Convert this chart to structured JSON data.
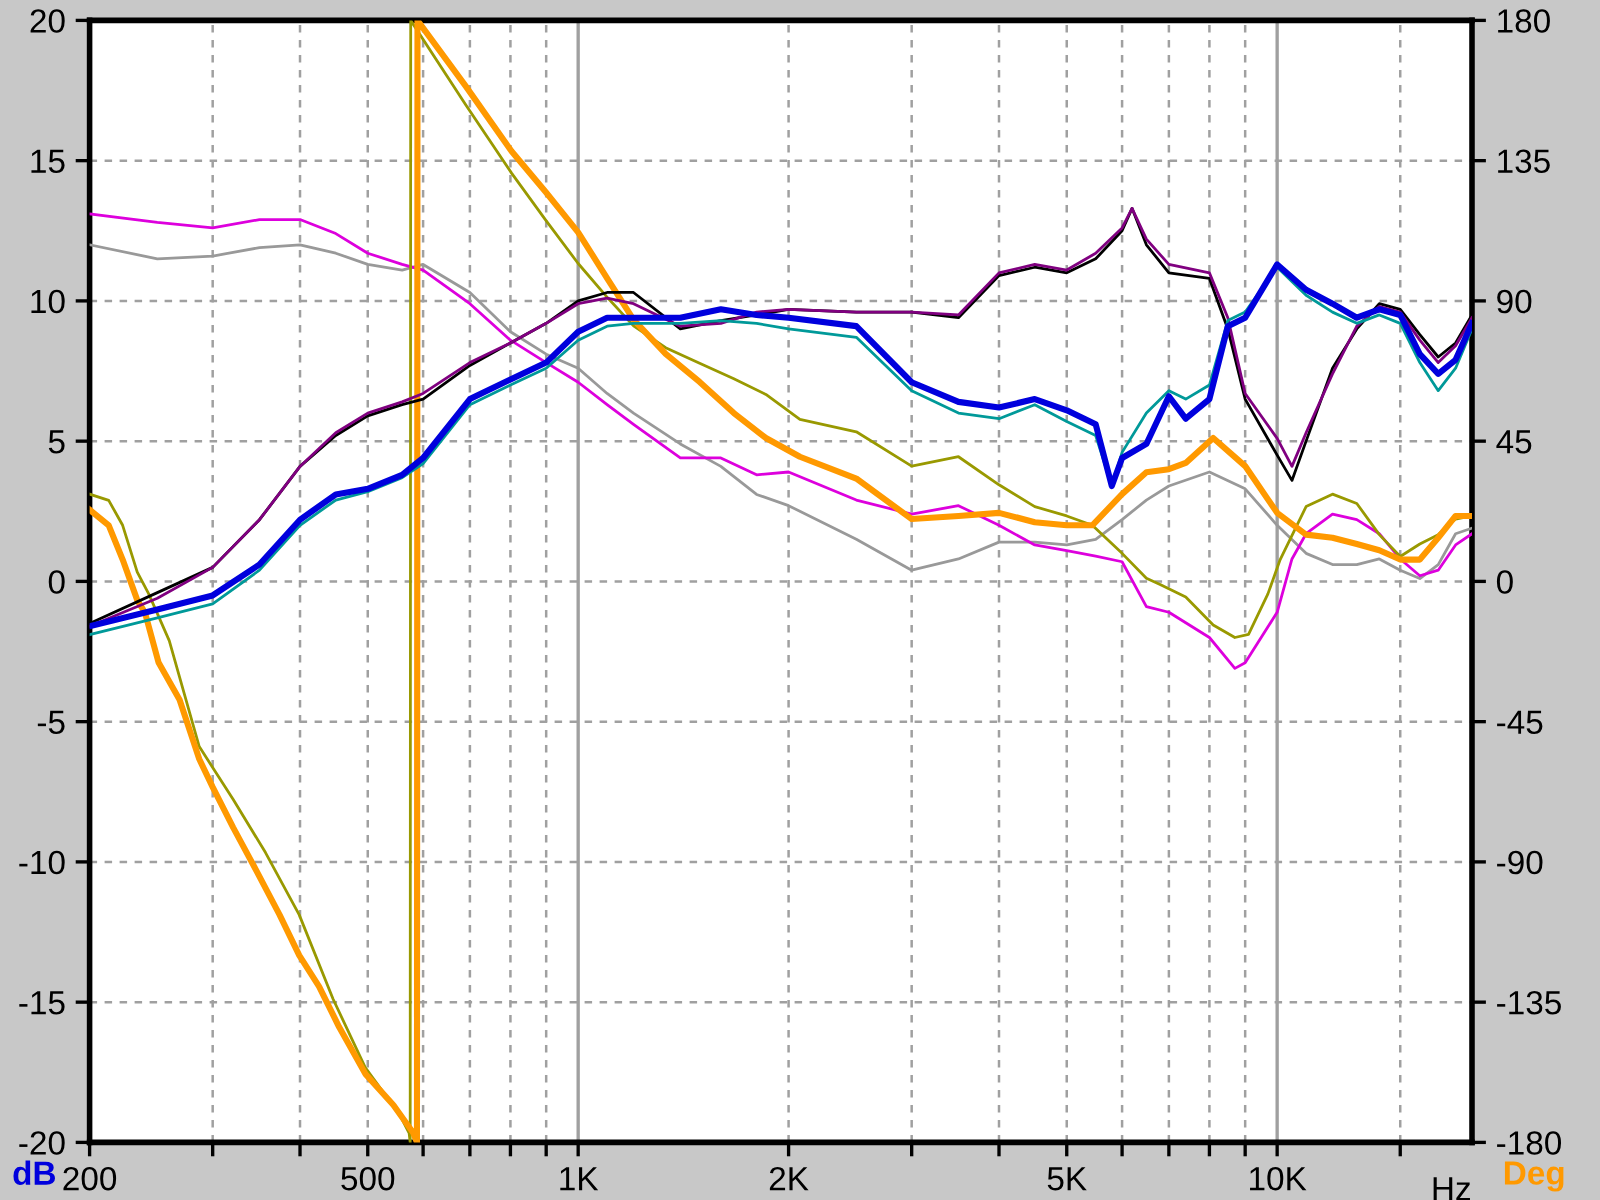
{
  "chart_data": {
    "type": "line",
    "xlabel": "Hz",
    "ylabel": "dB",
    "y2label": "Deg",
    "log": "x",
    "grid": true,
    "legend": false,
    "line_style": "solid",
    "marker": "none",
    "xlim": [
      200,
      19000
    ],
    "ylim": [
      -20,
      20
    ],
    "y2lim": [
      -180,
      180
    ],
    "xticks": [
      200,
      {
        "value": 300,
        "label": null
      },
      {
        "value": 400,
        "label": null
      },
      500,
      {
        "value": 600,
        "label": null
      },
      {
        "value": 700,
        "label": null
      },
      {
        "value": 800,
        "label": null
      },
      {
        "value": 900,
        "label": null
      },
      {
        "value": 1000,
        "label": "1K"
      },
      {
        "value": 2000,
        "label": "2K"
      },
      {
        "value": 3000,
        "label": null
      },
      {
        "value": 4000,
        "label": null
      },
      {
        "value": 5000,
        "label": "5K"
      },
      {
        "value": 6000,
        "label": null
      },
      {
        "value": 7000,
        "label": null
      },
      {
        "value": 8000,
        "label": null
      },
      {
        "value": 9000,
        "label": null
      },
      {
        "value": 10000,
        "label": "10K"
      },
      {
        "value": 15000,
        "label": null
      }
    ],
    "yticks": [
      -20,
      -15,
      -10,
      -5,
      0,
      5,
      10,
      15,
      20
    ],
    "y2ticks": [
      -180,
      -135,
      -90,
      -45,
      0,
      45,
      90,
      135,
      180
    ],
    "series": [
      {
        "color": "#999999",
        "x": [
          200,
          250,
          300,
          350,
          400,
          450,
          500,
          560,
          600,
          700,
          800,
          900,
          1000,
          1100,
          1200,
          1400,
          1600,
          1800,
          2000,
          2500,
          3000,
          3500,
          4000,
          4500,
          5000,
          5500,
          6000,
          6500,
          7000,
          8000,
          9000,
          10000,
          11000,
          12000,
          13000,
          14000,
          15000,
          16000,
          17000,
          18000,
          19000
        ],
        "values": [
          12.0,
          11.5,
          11.6,
          11.9,
          12.0,
          11.7,
          11.3,
          11.1,
          11.3,
          10.3,
          8.9,
          8.1,
          7.6,
          6.7,
          6.0,
          4.9,
          4.1,
          3.1,
          2.7,
          1.5,
          0.4,
          0.8,
          1.4,
          1.4,
          1.3,
          1.5,
          2.2,
          2.9,
          3.4,
          3.9,
          3.3,
          2.0,
          1.0,
          0.6,
          0.6,
          0.8,
          0.4,
          0.1,
          0.6,
          1.7,
          1.9
        ]
      },
      {
        "color": "#dd00dd",
        "x": [
          200,
          250,
          300,
          350,
          400,
          450,
          500,
          560,
          600,
          700,
          800,
          900,
          1000,
          1100,
          1200,
          1400,
          1600,
          1800,
          2000,
          2500,
          3000,
          3500,
          4000,
          4500,
          5000,
          5500,
          6000,
          6500,
          7000,
          8000,
          8700,
          9000,
          10000,
          10500,
          11000,
          12000,
          13000,
          14000,
          15000,
          16000,
          17000,
          18000,
          19000
        ],
        "values": [
          13.1,
          12.8,
          12.6,
          12.9,
          12.9,
          12.4,
          11.7,
          11.3,
          11.1,
          9.9,
          8.6,
          7.8,
          7.1,
          6.3,
          5.6,
          4.4,
          4.4,
          3.8,
          3.9,
          2.9,
          2.4,
          2.7,
          2.0,
          1.3,
          1.1,
          0.9,
          0.7,
          -0.9,
          -1.1,
          -2.0,
          -3.1,
          -2.9,
          -1.1,
          0.8,
          1.7,
          2.4,
          2.2,
          1.7,
          0.8,
          0.2,
          0.4,
          1.3,
          1.7
        ]
      },
      {
        "color": "#999900",
        "axis": "y2",
        "x": [
          200,
          213,
          223,
          234,
          243,
          260,
          287,
          321,
          357,
          399,
          446,
          496,
          555,
          573,
          575,
          576,
          690,
          803,
          898,
          1000,
          1102,
          1200,
          1334,
          1492,
          1670,
          1856,
          2076,
          2500,
          3000,
          3500,
          4000,
          4500,
          5000,
          5440,
          6000,
          6500,
          6800,
          7400,
          8100,
          8700,
          9100,
          9700,
          10100,
          11000,
          12000,
          13000,
          14000,
          15000,
          16000,
          17000,
          18000,
          19000
        ],
        "values": [
          28,
          26,
          18,
          3,
          -4,
          -19,
          -53,
          -70,
          -87,
          -107,
          -134,
          -156,
          -171,
          -177,
          -180,
          180,
          153,
          131,
          116,
          102,
          91,
          82,
          75,
          70,
          65,
          60,
          52,
          48,
          37,
          40,
          31,
          24,
          21,
          18,
          9,
          1,
          -1,
          -5,
          -14,
          -18,
          -17,
          -4,
          7,
          24,
          28,
          25,
          15,
          8,
          12,
          15,
          20,
          21
        ]
      },
      {
        "color": "#ff9900",
        "axis": "y2",
        "x": [
          200,
          213,
          223,
          234,
          240,
          251,
          269,
          287,
          300,
          321,
          343,
          374,
          399,
          426,
          455,
          496,
          544,
          581,
          588,
          589,
          690,
          803,
          898,
          1000,
          1102,
          1200,
          1334,
          1492,
          1670,
          1856,
          2076,
          2500,
          3000,
          3500,
          4000,
          4500,
          5000,
          5440,
          6000,
          6500,
          7000,
          7400,
          8100,
          9000,
          10000,
          11000,
          12000,
          13000,
          14000,
          15000,
          16000,
          17000,
          18000,
          19000
        ],
        "values": [
          23,
          18,
          7,
          -6,
          -10,
          -26,
          -38,
          -57,
          -66,
          -79,
          -91,
          -107,
          -120,
          -130,
          -143,
          -158,
          -168,
          -177,
          -180,
          180,
          159,
          138,
          125,
          112,
          97,
          84,
          73,
          64,
          54,
          46,
          40,
          33,
          20,
          21,
          22,
          19,
          18,
          18,
          28,
          35,
          36,
          38,
          46,
          37,
          22,
          15,
          14,
          12,
          10,
          7,
          7,
          14,
          21,
          21
        ]
      },
      {
        "color": "#000000",
        "x": [
          200,
          250,
          300,
          350,
          400,
          450,
          500,
          560,
          600,
          700,
          800,
          900,
          1000,
          1100,
          1200,
          1400,
          1600,
          1800,
          2000,
          2500,
          3000,
          3500,
          4000,
          4500,
          5000,
          5500,
          6000,
          6200,
          6500,
          7000,
          8000,
          8500,
          9000,
          10000,
          10500,
          11000,
          12000,
          13000,
          14000,
          15000,
          16000,
          17000,
          18000,
          19000
        ],
        "values": [
          -1.5,
          -0.4,
          0.5,
          2.2,
          4.1,
          5.2,
          5.9,
          6.3,
          6.5,
          7.7,
          8.5,
          9.2,
          10.0,
          10.3,
          10.3,
          9.0,
          9.3,
          9.5,
          9.7,
          9.6,
          9.6,
          9.4,
          10.9,
          11.2,
          11.0,
          11.5,
          12.5,
          13.3,
          12.0,
          11.0,
          10.8,
          9.0,
          6.5,
          4.5,
          3.6,
          5.0,
          7.6,
          9.0,
          9.9,
          9.7,
          8.8,
          8.0,
          8.5,
          9.5
        ]
      },
      {
        "color": "#800080",
        "x": [
          200,
          250,
          300,
          350,
          400,
          450,
          500,
          560,
          600,
          700,
          800,
          900,
          1000,
          1100,
          1200,
          1400,
          1600,
          1800,
          2000,
          2500,
          3000,
          3500,
          4000,
          4500,
          5000,
          5500,
          6000,
          6200,
          6500,
          7000,
          8000,
          8500,
          9000,
          10000,
          10500,
          11000,
          12000,
          13000,
          14000,
          15000,
          16000,
          17000,
          18000,
          19000
        ],
        "values": [
          -1.6,
          -0.6,
          0.5,
          2.2,
          4.1,
          5.3,
          6.0,
          6.4,
          6.7,
          7.8,
          8.5,
          9.2,
          9.9,
          10.1,
          9.9,
          9.1,
          9.2,
          9.6,
          9.7,
          9.6,
          9.6,
          9.5,
          11.0,
          11.3,
          11.1,
          11.7,
          12.6,
          13.3,
          12.2,
          11.3,
          11.0,
          9.4,
          6.7,
          5.1,
          4.1,
          5.3,
          7.4,
          9.1,
          9.8,
          9.6,
          8.6,
          7.8,
          8.4,
          9.4
        ]
      },
      {
        "color": "#009999",
        "x": [
          200,
          250,
          300,
          350,
          400,
          450,
          500,
          560,
          600,
          700,
          800,
          900,
          1000,
          1100,
          1200,
          1400,
          1600,
          1800,
          2000,
          2500,
          3000,
          3500,
          4000,
          4500,
          5000,
          5500,
          5800,
          6000,
          6500,
          7000,
          7400,
          8000,
          8500,
          9000,
          10000,
          11000,
          12000,
          13000,
          14000,
          15000,
          16000,
          17000,
          18000,
          19000
        ],
        "values": [
          -1.9,
          -1.3,
          -0.8,
          0.4,
          2.0,
          2.9,
          3.2,
          3.7,
          4.2,
          6.3,
          7.0,
          7.6,
          8.6,
          9.1,
          9.2,
          9.2,
          9.3,
          9.2,
          9.0,
          8.7,
          6.8,
          6.0,
          5.8,
          6.3,
          5.7,
          5.2,
          3.4,
          4.6,
          6.0,
          6.8,
          6.5,
          7.0,
          9.3,
          9.6,
          11.2,
          10.2,
          9.6,
          9.2,
          9.5,
          9.2,
          7.8,
          6.8,
          7.6,
          9.0
        ]
      },
      {
        "color": "#0000dd",
        "x": [
          200,
          250,
          300,
          350,
          400,
          450,
          500,
          560,
          600,
          700,
          800,
          900,
          1000,
          1100,
          1200,
          1400,
          1600,
          1800,
          2000,
          2500,
          3000,
          3500,
          4000,
          4500,
          5000,
          5500,
          5800,
          6000,
          6500,
          7000,
          7400,
          8000,
          8500,
          9000,
          10000,
          11000,
          12000,
          13000,
          14000,
          15000,
          16000,
          17000,
          18000,
          19000
        ],
        "values": [
          -1.6,
          -1.0,
          -0.5,
          0.6,
          2.2,
          3.1,
          3.3,
          3.8,
          4.4,
          6.5,
          7.2,
          7.8,
          8.9,
          9.4,
          9.4,
          9.4,
          9.7,
          9.5,
          9.4,
          9.1,
          7.1,
          6.4,
          6.2,
          6.5,
          6.1,
          5.6,
          3.4,
          4.4,
          4.9,
          6.6,
          5.8,
          6.5,
          9.1,
          9.4,
          11.3,
          10.4,
          9.9,
          9.4,
          9.7,
          9.5,
          8.1,
          7.4,
          7.9,
          9.2
        ]
      }
    ]
  }
}
